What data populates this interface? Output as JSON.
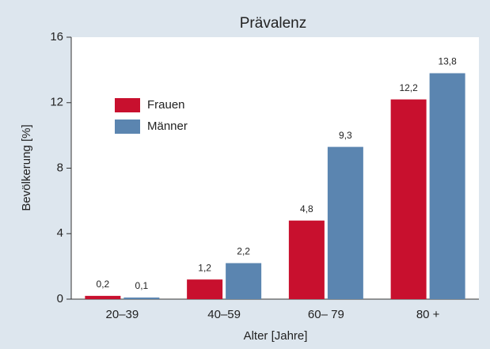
{
  "chart_data": {
    "type": "bar",
    "title": "Prävalenz",
    "categories": [
      "20–39",
      "40–59",
      "60– 79",
      "80 +"
    ],
    "series": [
      {
        "name": "Frauen",
        "color": "#c8102e",
        "values": [
          0.2,
          1.2,
          4.8,
          12.2
        ],
        "value_labels": [
          "0,2",
          "1,2",
          "4,8",
          "12,2"
        ]
      },
      {
        "name": "Männer",
        "color": "#5b85b0",
        "values": [
          0.1,
          2.2,
          9.3,
          13.8
        ],
        "value_labels": [
          "0,1",
          "2,2",
          "9,3",
          "13,8"
        ]
      }
    ],
    "ylim": [
      0,
      16
    ],
    "yticks": [
      0,
      4,
      8,
      12,
      16
    ],
    "xlabel": "Alter [Jahre]",
    "ylabel": "Bevölkerung [%]",
    "legend": "upper left"
  }
}
